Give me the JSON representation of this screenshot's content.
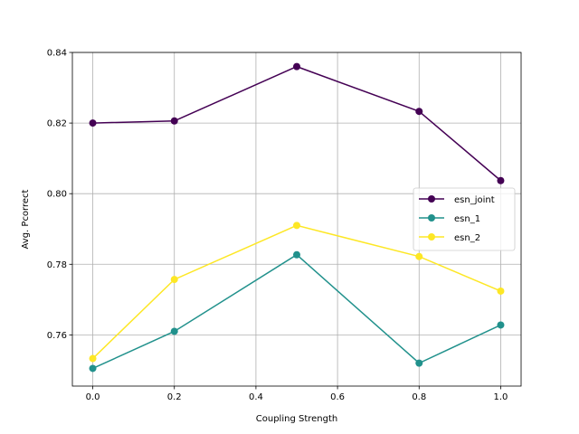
{
  "chart_data": {
    "type": "line",
    "title": "",
    "xlabel": "Coupling Strength",
    "ylabel": "Avg. Pcorrect",
    "x": [
      0.0,
      0.2,
      0.5,
      0.8,
      1.0
    ],
    "xlim": [
      -0.05,
      1.05
    ],
    "ylim": [
      0.7455,
      0.84
    ],
    "xticks": [
      0.0,
      0.2,
      0.4,
      0.6,
      0.8,
      1.0
    ],
    "xtick_labels": [
      "0.0",
      "0.2",
      "0.4",
      "0.6",
      "0.8",
      "1.0"
    ],
    "yticks": [
      0.76,
      0.78,
      0.8,
      0.82,
      0.84
    ],
    "ytick_labels": [
      "0.76",
      "0.78",
      "0.80",
      "0.82",
      "0.84"
    ],
    "grid": true,
    "legend_position": "center-right",
    "series": [
      {
        "name": "esn_joint",
        "color": "#440154",
        "values": [
          0.82,
          0.8206,
          0.836,
          0.8233,
          0.8037
        ]
      },
      {
        "name": "esn_1",
        "color": "#21918c",
        "values": [
          0.7505,
          0.761,
          0.7827,
          0.752,
          0.7628
        ]
      },
      {
        "name": "esn_2",
        "color": "#fde725",
        "values": [
          0.7533,
          0.7757,
          0.791,
          0.7822,
          0.7724
        ]
      }
    ]
  }
}
